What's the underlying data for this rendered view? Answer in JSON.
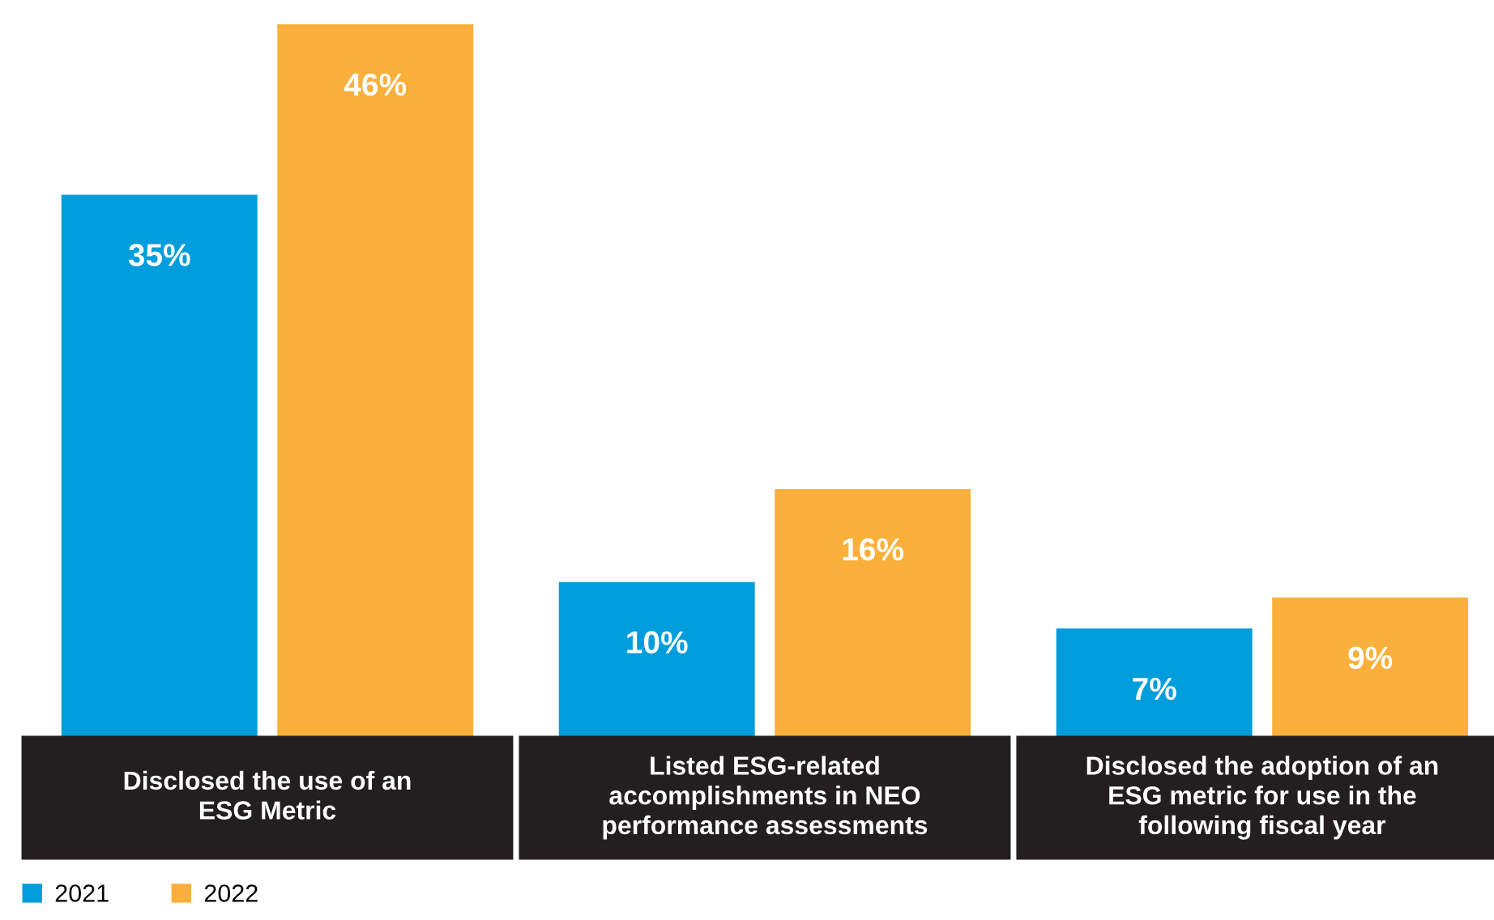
{
  "chart_data": {
    "type": "bar",
    "categories": [
      "Disclosed the use of an\nESG Metric",
      "Listed ESG-related\naccomplishments in NEO\nperformance assessments",
      "Disclosed the adoption of an\nESG metric for use in the\nfollowing fiscal year"
    ],
    "series": [
      {
        "name": "2021",
        "color": "#009ddc",
        "values": [
          35,
          10,
          7
        ],
        "value_labels": [
          "35%",
          "10%",
          "7%"
        ]
      },
      {
        "name": "2022",
        "color": "#fbb03b",
        "values": [
          46,
          16,
          9
        ],
        "value_labels": [
          "46%",
          "16%",
          "9%"
        ]
      }
    ],
    "legend": "bottom left"
  }
}
